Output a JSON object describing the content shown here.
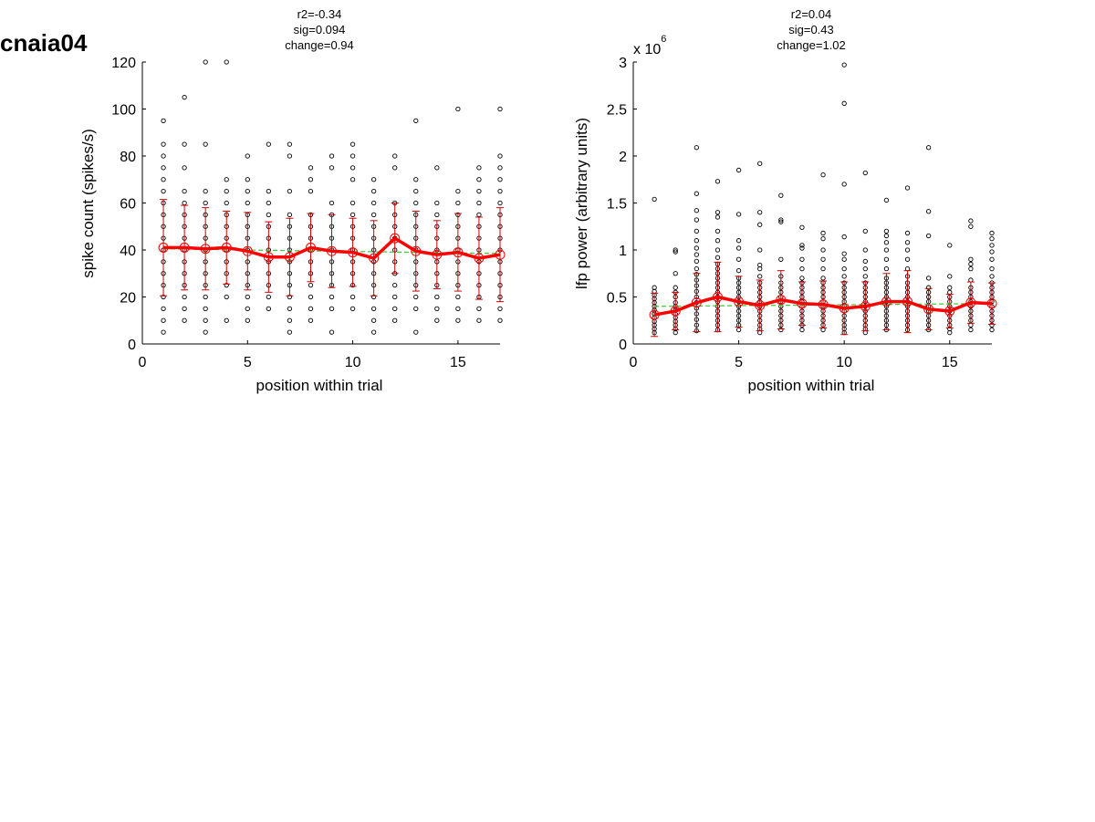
{
  "figure": {
    "label": "cnaia04"
  },
  "chart_data": [
    {
      "type": "scatter",
      "title_lines": [
        "r2=-0.34",
        "sig=0.094",
        "change=0.94"
      ],
      "xlabel": "position within trial",
      "ylabel": "spike count (spikes/s)",
      "xlim": [
        0,
        17
      ],
      "ylim": [
        0,
        120
      ],
      "xticks": [
        0,
        5,
        10,
        15
      ],
      "yticks": [
        0,
        20,
        40,
        60,
        80,
        100,
        120
      ],
      "ytick_labels": [
        "0",
        "20",
        "40",
        "60",
        "80",
        "100",
        "120"
      ],
      "exponent_label": "",
      "grid": false,
      "colors": {
        "points": "#000000",
        "mean": "#ff0000",
        "error": "#cc0000",
        "fit": "#33cc33"
      },
      "points": [
        {
          "x": 1,
          "ys": [
            5,
            10,
            15,
            20,
            25,
            30,
            35,
            40,
            45,
            50,
            55,
            60,
            65,
            70,
            75,
            80,
            85,
            95
          ]
        },
        {
          "x": 2,
          "ys": [
            10,
            15,
            20,
            25,
            30,
            35,
            40,
            45,
            50,
            55,
            60,
            65,
            75,
            85,
            105
          ]
        },
        {
          "x": 3,
          "ys": [
            5,
            10,
            15,
            20,
            25,
            30,
            35,
            40,
            45,
            50,
            55,
            60,
            65,
            85,
            120
          ]
        },
        {
          "x": 4,
          "ys": [
            10,
            20,
            25,
            30,
            35,
            40,
            45,
            50,
            55,
            60,
            65,
            70,
            120
          ]
        },
        {
          "x": 5,
          "ys": [
            10,
            15,
            20,
            25,
            30,
            35,
            40,
            45,
            50,
            55,
            60,
            65,
            70,
            80
          ]
        },
        {
          "x": 6,
          "ys": [
            15,
            20,
            25,
            30,
            35,
            40,
            45,
            50,
            55,
            60,
            65,
            85
          ]
        },
        {
          "x": 7,
          "ys": [
            5,
            10,
            15,
            20,
            25,
            30,
            35,
            40,
            45,
            50,
            55,
            65,
            80,
            85
          ]
        },
        {
          "x": 8,
          "ys": [
            10,
            15,
            20,
            25,
            30,
            35,
            40,
            45,
            50,
            55,
            65,
            70,
            75
          ]
        },
        {
          "x": 9,
          "ys": [
            5,
            15,
            20,
            25,
            30,
            35,
            40,
            45,
            50,
            55,
            60,
            75,
            80
          ]
        },
        {
          "x": 10,
          "ys": [
            15,
            20,
            25,
            30,
            35,
            40,
            45,
            50,
            55,
            60,
            70,
            75,
            80,
            85
          ]
        },
        {
          "x": 11,
          "ys": [
            5,
            10,
            15,
            20,
            25,
            30,
            35,
            40,
            45,
            50,
            55,
            60,
            65,
            70
          ]
        },
        {
          "x": 12,
          "ys": [
            10,
            15,
            20,
            25,
            30,
            35,
            40,
            45,
            50,
            55,
            60,
            75,
            80
          ]
        },
        {
          "x": 13,
          "ys": [
            5,
            15,
            20,
            25,
            30,
            35,
            40,
            45,
            50,
            55,
            60,
            65,
            70,
            95
          ]
        },
        {
          "x": 14,
          "ys": [
            10,
            15,
            20,
            25,
            30,
            35,
            40,
            45,
            50,
            55,
            60,
            75
          ]
        },
        {
          "x": 15,
          "ys": [
            10,
            15,
            20,
            25,
            30,
            35,
            40,
            45,
            50,
            55,
            60,
            65,
            100
          ]
        },
        {
          "x": 16,
          "ys": [
            10,
            15,
            20,
            25,
            30,
            35,
            40,
            45,
            50,
            55,
            60,
            65,
            70,
            75
          ]
        },
        {
          "x": 17,
          "ys": [
            10,
            15,
            20,
            25,
            30,
            35,
            40,
            45,
            50,
            55,
            60,
            65,
            70,
            75,
            80,
            100
          ]
        }
      ],
      "mean": {
        "x": [
          1,
          2,
          3,
          4,
          5,
          6,
          7,
          8,
          9,
          10,
          11,
          12,
          13,
          14,
          15,
          16,
          17
        ],
        "y": [
          41,
          41,
          40.5,
          41,
          39.5,
          37,
          37,
          41,
          39.5,
          39,
          36.5,
          45,
          39.5,
          38,
          39,
          36.5,
          38
        ],
        "err": [
          20.5,
          18,
          17.5,
          15.5,
          16.5,
          15,
          16.5,
          14.5,
          15.5,
          14.5,
          16,
          15,
          17,
          14.5,
          16.5,
          17.5,
          20
        ]
      },
      "fit": {
        "x": [
          1,
          17
        ],
        "y": [
          40.5,
          38.5
        ]
      }
    },
    {
      "type": "scatter",
      "title_lines": [
        "r2=0.04",
        "sig=0.43",
        "change=1.02"
      ],
      "xlabel": "position within trial",
      "ylabel": "lfp power (arbitrary units)",
      "xlim": [
        0,
        17
      ],
      "ylim": [
        0,
        3
      ],
      "xticks": [
        0,
        5,
        10,
        15
      ],
      "yticks": [
        0,
        0.5,
        1,
        1.5,
        2,
        2.5,
        3
      ],
      "ytick_labels": [
        "0",
        "0.5",
        "1",
        "1.5",
        "2",
        "2.5",
        "3"
      ],
      "exponent_label": "x 10",
      "exponent_power": "6",
      "grid": false,
      "colors": {
        "points": "#000000",
        "mean": "#ff0000",
        "error": "#cc0000",
        "fit": "#33cc33"
      },
      "points": [
        {
          "x": 1,
          "ys": [
            0.12,
            0.16,
            0.2,
            0.24,
            0.28,
            0.32,
            0.36,
            0.4,
            0.44,
            0.48,
            0.52,
            0.56,
            0.6,
            1.54
          ]
        },
        {
          "x": 2,
          "ys": [
            0.12,
            0.16,
            0.2,
            0.24,
            0.28,
            0.32,
            0.36,
            0.4,
            0.44,
            0.5,
            0.55,
            0.6,
            0.75,
            0.98,
            1.0
          ]
        },
        {
          "x": 3,
          "ys": [
            0.14,
            0.2,
            0.26,
            0.32,
            0.38,
            0.44,
            0.5,
            0.56,
            0.62,
            0.68,
            0.74,
            0.8,
            0.88,
            0.95,
            1.02,
            1.1,
            1.2,
            1.32,
            1.42,
            1.6,
            2.09
          ]
        },
        {
          "x": 4,
          "ys": [
            0.15,
            0.2,
            0.25,
            0.3,
            0.35,
            0.4,
            0.45,
            0.5,
            0.55,
            0.6,
            0.65,
            0.7,
            0.75,
            0.8,
            0.85,
            0.92,
            1.0,
            1.1,
            1.2,
            1.35,
            1.4,
            1.73
          ]
        },
        {
          "x": 5,
          "ys": [
            0.15,
            0.2,
            0.25,
            0.3,
            0.35,
            0.4,
            0.45,
            0.5,
            0.55,
            0.6,
            0.65,
            0.7,
            0.78,
            0.9,
            1.02,
            1.1,
            1.38,
            1.85
          ]
        },
        {
          "x": 6,
          "ys": [
            0.12,
            0.16,
            0.2,
            0.25,
            0.3,
            0.35,
            0.4,
            0.45,
            0.5,
            0.55,
            0.6,
            0.65,
            0.72,
            0.8,
            0.84,
            1.0,
            1.27,
            1.4,
            1.92
          ]
        },
        {
          "x": 7,
          "ys": [
            0.15,
            0.2,
            0.25,
            0.3,
            0.35,
            0.4,
            0.45,
            0.5,
            0.55,
            0.6,
            0.65,
            0.72,
            0.9,
            1.3,
            1.32,
            1.58
          ]
        },
        {
          "x": 8,
          "ys": [
            0.15,
            0.2,
            0.25,
            0.3,
            0.35,
            0.4,
            0.45,
            0.5,
            0.55,
            0.6,
            0.65,
            0.7,
            0.8,
            0.9,
            1.02,
            1.05,
            1.24
          ]
        },
        {
          "x": 9,
          "ys": [
            0.15,
            0.2,
            0.25,
            0.3,
            0.35,
            0.4,
            0.45,
            0.5,
            0.55,
            0.6,
            0.65,
            0.7,
            0.8,
            0.9,
            1.0,
            1.12,
            1.18,
            1.8
          ]
        },
        {
          "x": 10,
          "ys": [
            0.12,
            0.16,
            0.2,
            0.25,
            0.3,
            0.35,
            0.4,
            0.45,
            0.5,
            0.55,
            0.6,
            0.65,
            0.72,
            0.8,
            0.9,
            0.96,
            1.14,
            1.7,
            2.56,
            2.97
          ]
        },
        {
          "x": 11,
          "ys": [
            0.12,
            0.16,
            0.2,
            0.25,
            0.3,
            0.35,
            0.4,
            0.45,
            0.5,
            0.55,
            0.6,
            0.65,
            0.72,
            0.8,
            0.88,
            1.0,
            1.2,
            1.82
          ]
        },
        {
          "x": 12,
          "ys": [
            0.15,
            0.2,
            0.25,
            0.3,
            0.35,
            0.4,
            0.45,
            0.5,
            0.55,
            0.6,
            0.65,
            0.7,
            0.8,
            0.9,
            1.0,
            1.08,
            1.15,
            1.2,
            1.53
          ]
        },
        {
          "x": 13,
          "ys": [
            0.15,
            0.2,
            0.25,
            0.3,
            0.35,
            0.4,
            0.45,
            0.5,
            0.55,
            0.6,
            0.65,
            0.72,
            0.8,
            0.9,
            1.0,
            1.08,
            1.18,
            1.66
          ]
        },
        {
          "x": 14,
          "ys": [
            0.15,
            0.2,
            0.25,
            0.3,
            0.35,
            0.4,
            0.45,
            0.5,
            0.55,
            0.6,
            0.7,
            1.15,
            1.41,
            2.09
          ]
        },
        {
          "x": 15,
          "ys": [
            0.12,
            0.16,
            0.2,
            0.25,
            0.3,
            0.35,
            0.4,
            0.45,
            0.5,
            0.55,
            0.6,
            0.72,
            1.05
          ]
        },
        {
          "x": 16,
          "ys": [
            0.15,
            0.2,
            0.25,
            0.3,
            0.35,
            0.4,
            0.45,
            0.5,
            0.55,
            0.6,
            0.68,
            0.8,
            0.85,
            0.9,
            1.25,
            1.31
          ]
        },
        {
          "x": 17,
          "ys": [
            0.15,
            0.2,
            0.25,
            0.3,
            0.35,
            0.4,
            0.45,
            0.5,
            0.55,
            0.6,
            0.65,
            0.72,
            0.8,
            0.9,
            0.98,
            1.05,
            1.12,
            1.18
          ]
        }
      ],
      "mean": {
        "x": [
          1,
          2,
          3,
          4,
          5,
          6,
          7,
          8,
          9,
          10,
          11,
          12,
          13,
          14,
          15,
          16,
          17
        ],
        "y": [
          0.31,
          0.35,
          0.44,
          0.5,
          0.45,
          0.41,
          0.47,
          0.43,
          0.42,
          0.38,
          0.4,
          0.45,
          0.45,
          0.37,
          0.35,
          0.44,
          0.43
        ],
        "err": [
          0.23,
          0.2,
          0.31,
          0.37,
          0.27,
          0.27,
          0.31,
          0.23,
          0.25,
          0.28,
          0.26,
          0.3,
          0.33,
          0.22,
          0.18,
          0.22,
          0.22
        ]
      },
      "fit": {
        "x": [
          1,
          17
        ],
        "y": [
          0.4,
          0.43
        ]
      }
    }
  ]
}
